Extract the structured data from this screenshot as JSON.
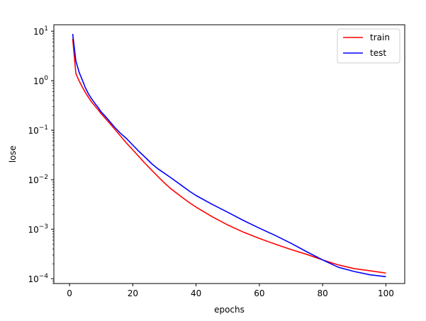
{
  "chart_data": {
    "type": "line",
    "title": "",
    "xlabel": "epochs",
    "ylabel": "lose",
    "xlim": [
      -4.95,
      105.95
    ],
    "ylim": [
      8e-05,
      13.5
    ],
    "yscale": "log",
    "grid": false,
    "legend_position": "top-right",
    "x_ticks": [
      0,
      20,
      40,
      60,
      80,
      100
    ],
    "x_tick_labels": [
      "0",
      "20",
      "40",
      "60",
      "80",
      "100"
    ],
    "y_ticks": [
      0.0001,
      0.001,
      0.01,
      0.1,
      1,
      10
    ],
    "y_tick_labels": [
      {
        "base": "10",
        "exp": "−4"
      },
      {
        "base": "10",
        "exp": "−3"
      },
      {
        "base": "10",
        "exp": "−2"
      },
      {
        "base": "10",
        "exp": "−1"
      },
      {
        "base": "10",
        "exp": "0"
      },
      {
        "base": "10",
        "exp": "1"
      }
    ],
    "series": [
      {
        "name": "train",
        "color": "#ff0000",
        "points": [
          [
            1,
            7.0
          ],
          [
            2,
            1.4
          ],
          [
            3,
            1.0
          ],
          [
            4,
            0.75
          ],
          [
            5,
            0.58
          ],
          [
            6,
            0.46
          ],
          [
            7,
            0.37
          ],
          [
            8,
            0.31
          ],
          [
            9,
            0.26
          ],
          [
            10,
            0.215
          ],
          [
            12,
            0.155
          ],
          [
            14,
            0.11
          ],
          [
            16,
            0.078
          ],
          [
            18,
            0.055
          ],
          [
            20,
            0.04
          ],
          [
            22,
            0.029
          ],
          [
            24,
            0.021
          ],
          [
            26,
            0.0155
          ],
          [
            28,
            0.0115
          ],
          [
            30,
            0.0086
          ],
          [
            32,
            0.0066
          ],
          [
            35,
            0.0047
          ],
          [
            38,
            0.0034
          ],
          [
            40,
            0.0028
          ],
          [
            45,
            0.0018
          ],
          [
            50,
            0.00122
          ],
          [
            55,
            0.00087
          ],
          [
            60,
            0.00065
          ],
          [
            65,
            0.0005
          ],
          [
            70,
            0.00039
          ],
          [
            75,
            0.00031
          ],
          [
            80,
            0.00024
          ],
          [
            85,
            0.00019
          ],
          [
            90,
            0.00016
          ],
          [
            95,
            0.000145
          ],
          [
            100,
            0.00013
          ]
        ]
      },
      {
        "name": "test",
        "color": "#0000ff",
        "points": [
          [
            1,
            8.8
          ],
          [
            2,
            2.5
          ],
          [
            3,
            1.5
          ],
          [
            4,
            1.05
          ],
          [
            5,
            0.72
          ],
          [
            6,
            0.54
          ],
          [
            7,
            0.43
          ],
          [
            8,
            0.35
          ],
          [
            9,
            0.29
          ],
          [
            10,
            0.235
          ],
          [
            12,
            0.17
          ],
          [
            14,
            0.12
          ],
          [
            16,
            0.088
          ],
          [
            18,
            0.068
          ],
          [
            20,
            0.05
          ],
          [
            22,
            0.037
          ],
          [
            24,
            0.028
          ],
          [
            26,
            0.021
          ],
          [
            28,
            0.0165
          ],
          [
            30,
            0.0135
          ],
          [
            32,
            0.011
          ],
          [
            35,
            0.008
          ],
          [
            38,
            0.0058
          ],
          [
            40,
            0.0048
          ],
          [
            45,
            0.0032
          ],
          [
            50,
            0.0022
          ],
          [
            55,
            0.0015
          ],
          [
            60,
            0.00105
          ],
          [
            65,
            0.00075
          ],
          [
            70,
            0.00052
          ],
          [
            75,
            0.00035
          ],
          [
            80,
            0.00024
          ],
          [
            85,
            0.00017
          ],
          [
            90,
            0.00014
          ],
          [
            95,
            0.00012
          ],
          [
            100,
            0.00011
          ]
        ]
      }
    ]
  }
}
